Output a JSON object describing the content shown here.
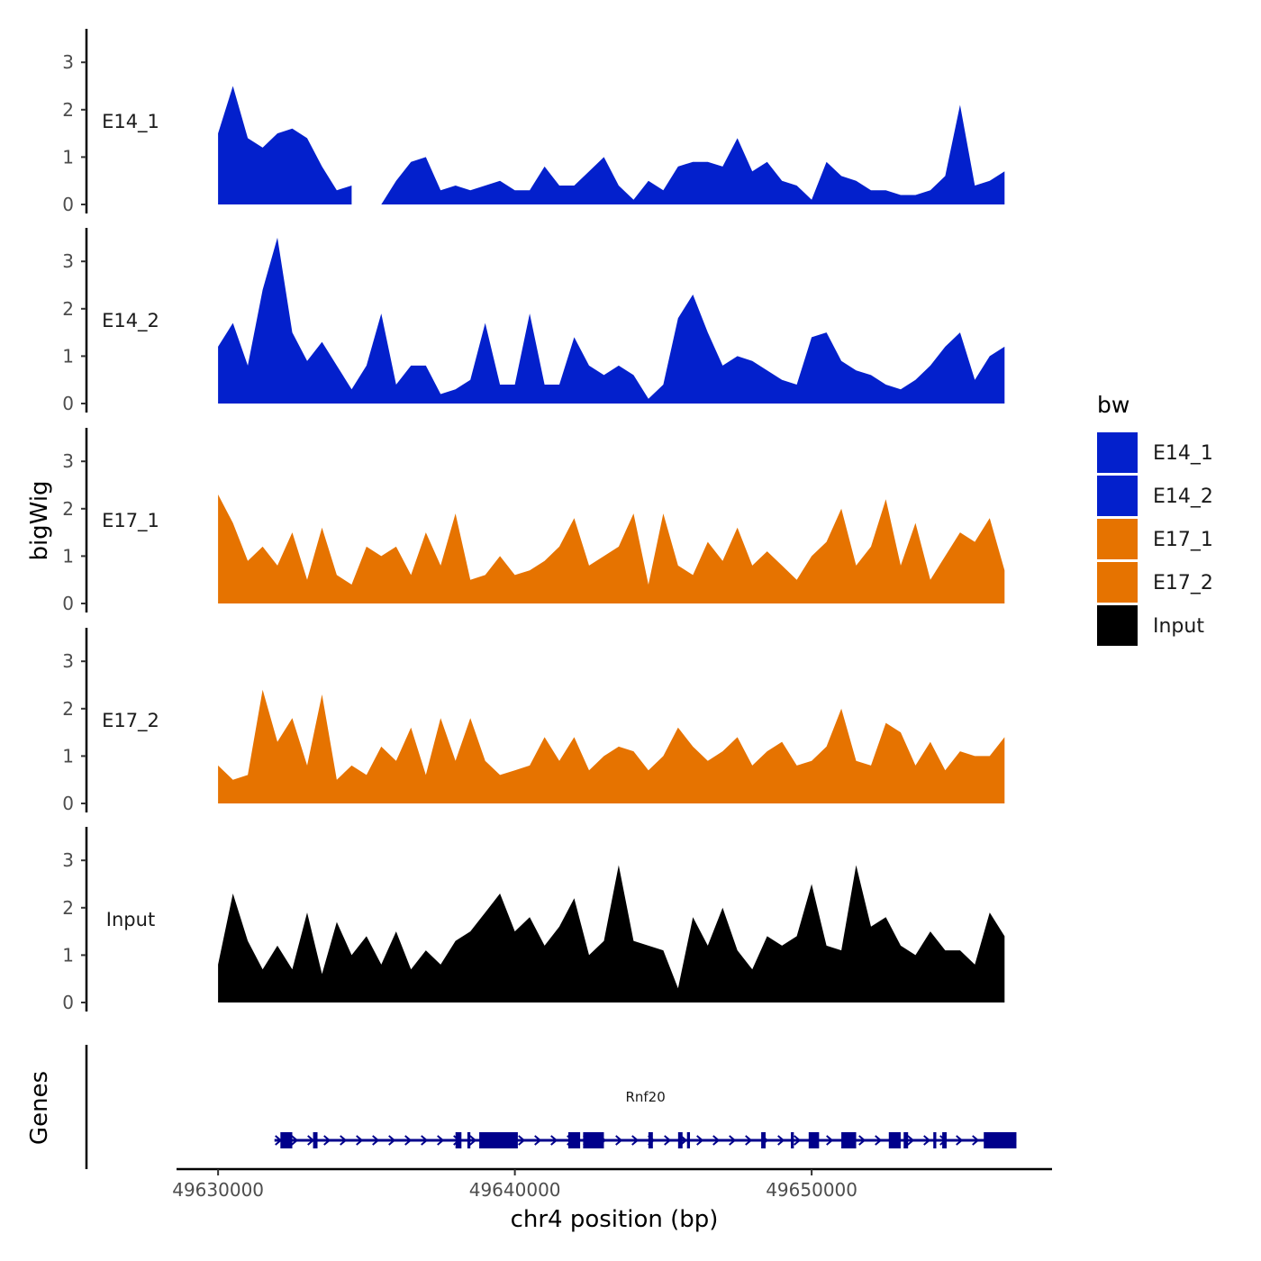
{
  "chart_data": {
    "type": "area",
    "x": [
      49630000,
      49630500,
      49631000,
      49631500,
      49632000,
      49632500,
      49633000,
      49633500,
      49634000,
      49634500,
      49635000,
      49635500,
      49636000,
      49636500,
      49637000,
      49637500,
      49638000,
      49638500,
      49639000,
      49639500,
      49640000,
      49640500,
      49641000,
      49641500,
      49642000,
      49642500,
      49643000,
      49643500,
      49644000,
      49644500,
      49645000,
      49645500,
      49646000,
      49646500,
      49647000,
      49647500,
      49648000,
      49648500,
      49649000,
      49649500,
      49650000,
      49650500,
      49651000,
      49651500,
      49652000,
      49652500,
      49653000,
      49653500,
      49654000,
      49654500,
      49655000,
      49655500,
      49656000,
      49656500
    ],
    "xlim": [
      49628600,
      49658100
    ],
    "ylim": [
      0,
      3.7
    ],
    "yticks": [
      0,
      1,
      2,
      3
    ],
    "xticks": [
      49630000,
      49640000,
      49650000
    ],
    "xtick_labels": [
      "49630000",
      "49640000",
      "49650000"
    ],
    "xlabel": "chr4 position (bp)",
    "ylabel": "bigWig",
    "series": [
      {
        "name": "E14_1",
        "color": "#0320CC",
        "values": [
          1.5,
          2.5,
          1.4,
          1.2,
          1.5,
          1.6,
          1.4,
          0.8,
          0.3,
          0.4,
          null,
          0,
          0.5,
          0.9,
          1.0,
          0.3,
          0.4,
          0.3,
          0.4,
          0.5,
          0.3,
          0.3,
          0.8,
          0.4,
          0.4,
          0.7,
          1.0,
          0.4,
          0.1,
          0.5,
          0.3,
          0.8,
          0.9,
          0.9,
          0.8,
          1.4,
          0.7,
          0.9,
          0.5,
          0.4,
          0.1,
          0.9,
          0.6,
          0.5,
          0.3,
          0.3,
          0.2,
          0.2,
          0.3,
          0.6,
          2.1,
          0.4,
          0.5,
          0.7
        ]
      },
      {
        "name": "E14_2",
        "color": "#0320CC",
        "values": [
          1.2,
          1.7,
          0.8,
          2.4,
          3.5,
          1.5,
          0.9,
          1.3,
          0.8,
          0.3,
          0.8,
          1.9,
          0.4,
          0.8,
          0.8,
          0.2,
          0.3,
          0.5,
          1.7,
          0.4,
          0.4,
          1.9,
          0.4,
          0.4,
          1.4,
          0.8,
          0.6,
          0.8,
          0.6,
          0.1,
          0.4,
          1.8,
          2.3,
          1.5,
          0.8,
          1.0,
          0.9,
          0.7,
          0.5,
          0.4,
          1.4,
          1.5,
          0.9,
          0.7,
          0.6,
          0.4,
          0.3,
          0.5,
          0.8,
          1.2,
          1.5,
          0.5,
          1.0,
          1.2
        ]
      },
      {
        "name": "E17_1",
        "color": "#E67300",
        "values": [
          2.3,
          1.7,
          0.9,
          1.2,
          0.8,
          1.5,
          0.5,
          1.6,
          0.6,
          0.4,
          1.2,
          1.0,
          1.2,
          0.6,
          1.5,
          0.8,
          1.9,
          0.5,
          0.6,
          1.0,
          0.6,
          0.7,
          0.9,
          1.2,
          1.8,
          0.8,
          1.0,
          1.2,
          1.9,
          0.4,
          1.9,
          0.8,
          0.6,
          1.3,
          0.9,
          1.6,
          0.8,
          1.1,
          0.8,
          0.5,
          1.0,
          1.3,
          2.0,
          0.8,
          1.2,
          2.2,
          0.8,
          1.7,
          0.5,
          1.0,
          1.5,
          1.3,
          1.8,
          0.7
        ]
      },
      {
        "name": "E17_2",
        "color": "#E67300",
        "values": [
          0.8,
          0.5,
          0.6,
          2.4,
          1.3,
          1.8,
          0.8,
          2.3,
          0.5,
          0.8,
          0.6,
          1.2,
          0.9,
          1.6,
          0.6,
          1.8,
          0.9,
          1.8,
          0.9,
          0.6,
          0.7,
          0.8,
          1.4,
          0.9,
          1.4,
          0.7,
          1.0,
          1.2,
          1.1,
          0.7,
          1.0,
          1.6,
          1.2,
          0.9,
          1.1,
          1.4,
          0.8,
          1.1,
          1.3,
          0.8,
          0.9,
          1.2,
          2.0,
          0.9,
          0.8,
          1.7,
          1.5,
          0.8,
          1.3,
          0.7,
          1.1,
          1.0,
          1.0,
          1.4
        ]
      },
      {
        "name": "Input",
        "color": "#000000",
        "values": [
          0.8,
          2.3,
          1.3,
          0.7,
          1.2,
          0.7,
          1.9,
          0.6,
          1.7,
          1.0,
          1.4,
          0.8,
          1.5,
          0.7,
          1.1,
          0.8,
          1.3,
          1.5,
          1.9,
          2.3,
          1.5,
          1.8,
          1.2,
          1.6,
          2.2,
          1.0,
          1.3,
          2.9,
          1.3,
          1.2,
          1.1,
          0.3,
          1.8,
          1.2,
          2.0,
          1.1,
          0.7,
          1.4,
          1.2,
          1.4,
          2.5,
          1.2,
          1.1,
          2.9,
          1.6,
          1.8,
          1.2,
          1.0,
          1.5,
          1.1,
          1.1,
          0.8,
          1.9,
          1.4
        ]
      }
    ],
    "legend": {
      "title": "bw",
      "entries": [
        "E14_1",
        "E14_2",
        "E17_1",
        "E17_2",
        "Input"
      ],
      "position": "right"
    },
    "genes": {
      "title": "Genes",
      "color": "#00008B",
      "items": [
        {
          "name": "Rnf20",
          "start": 49631900,
          "end": 49656900,
          "strand": "+",
          "exons": [
            [
              49632100,
              49632500
            ],
            [
              49633200,
              49633350
            ],
            [
              49638000,
              49638200
            ],
            [
              49638400,
              49638500
            ],
            [
              49638800,
              49640100
            ],
            [
              49641800,
              49642200
            ],
            [
              49642300,
              49643000
            ],
            [
              49644500,
              49644650
            ],
            [
              49645500,
              49645650
            ],
            [
              49645800,
              49645900
            ],
            [
              49648300,
              49648450
            ],
            [
              49649300,
              49649400
            ],
            [
              49649900,
              49650250
            ],
            [
              49651000,
              49651500
            ],
            [
              49652600,
              49653000
            ],
            [
              49653100,
              49653250
            ],
            [
              49654100,
              49654200
            ],
            [
              49654400,
              49654550
            ],
            [
              49655800,
              49656900
            ]
          ]
        }
      ]
    }
  }
}
